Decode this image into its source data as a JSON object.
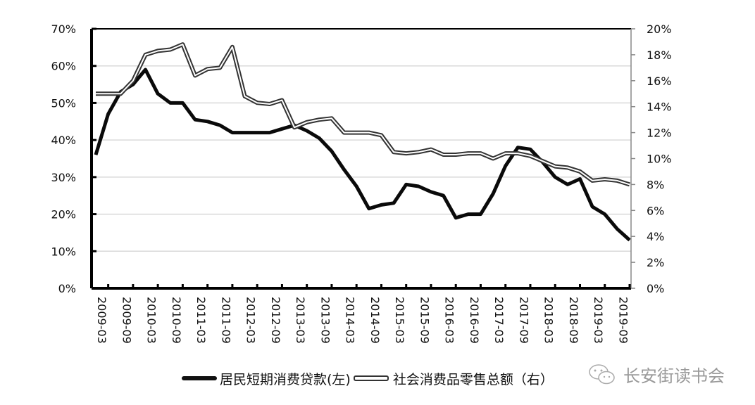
{
  "chart_data": {
    "type": "line",
    "title": "",
    "xlabel": "",
    "ylabel_left": "",
    "ylabel_right": "",
    "grid": true,
    "legend_position": "bottom",
    "x_tick_labels": [
      "2009-03",
      "2009-09",
      "2010-03",
      "2010-09",
      "2011-03",
      "2011-09",
      "2012-03",
      "2012-09",
      "2013-03",
      "2013-09",
      "2014-03",
      "2014-09",
      "2015-03",
      "2015-09",
      "2016-03",
      "2016-09",
      "2017-03",
      "2017-09",
      "2018-03",
      "2018-09",
      "2019-03",
      "2019-09"
    ],
    "y_left": {
      "ticks": [
        "0%",
        "10%",
        "20%",
        "30%",
        "40%",
        "50%",
        "60%",
        "70%"
      ],
      "ylim": [
        0,
        70
      ]
    },
    "y_right": {
      "ticks": [
        "0%",
        "2%",
        "4%",
        "6%",
        "8%",
        "10%",
        "12%",
        "14%",
        "16%",
        "18%",
        "20%"
      ],
      "ylim": [
        0,
        20
      ]
    },
    "x": [
      "2009-03",
      "2009-06",
      "2009-09",
      "2009-12",
      "2010-03",
      "2010-06",
      "2010-09",
      "2010-12",
      "2011-03",
      "2011-06",
      "2011-09",
      "2011-12",
      "2012-03",
      "2012-06",
      "2012-09",
      "2012-12",
      "2013-03",
      "2013-06",
      "2013-09",
      "2013-12",
      "2014-03",
      "2014-06",
      "2014-09",
      "2014-12",
      "2015-03",
      "2015-06",
      "2015-09",
      "2015-12",
      "2016-03",
      "2016-06",
      "2016-09",
      "2016-12",
      "2017-03",
      "2017-06",
      "2017-09",
      "2017-12",
      "2018-03",
      "2018-06",
      "2018-09",
      "2018-12",
      "2019-03",
      "2019-06",
      "2019-09",
      "2019-12"
    ],
    "series": [
      {
        "name": "居民短期消费贷款(左)",
        "axis": "left",
        "style": "solid-black",
        "values": [
          36,
          47,
          53,
          55,
          59,
          52.5,
          50,
          50,
          45.5,
          45,
          44,
          42,
          42,
          42,
          42,
          43,
          44,
          42.5,
          40.5,
          37,
          32,
          27.5,
          21.5,
          22.5,
          23,
          28,
          27.5,
          26,
          25,
          19,
          20,
          20,
          25.5,
          33,
          38,
          37.5,
          34,
          30,
          28,
          29.5,
          22,
          20,
          16,
          13
        ]
      },
      {
        "name": "社会消费品零售总额（右）",
        "axis": "right",
        "style": "double-line",
        "values": [
          15,
          15,
          15,
          16,
          18,
          18.3,
          18.4,
          18.8,
          16.4,
          16.9,
          17,
          18.6,
          14.8,
          14.3,
          14.2,
          14.5,
          12.4,
          12.8,
          13,
          13.1,
          12,
          12,
          12,
          11.8,
          10.5,
          10.4,
          10.5,
          10.7,
          10.3,
          10.3,
          10.4,
          10.4,
          10,
          10.4,
          10.4,
          10.2,
          9.8,
          9.4,
          9.3,
          9,
          8.3,
          8.4,
          8.3,
          8
        ]
      }
    ]
  },
  "legend": {
    "item_left_label": "居民短期消费贷款(左)",
    "item_right_label": "社会消费品零售总额（右）"
  },
  "watermark": {
    "text": "长安街读书会",
    "icon": "wechat-icon"
  }
}
